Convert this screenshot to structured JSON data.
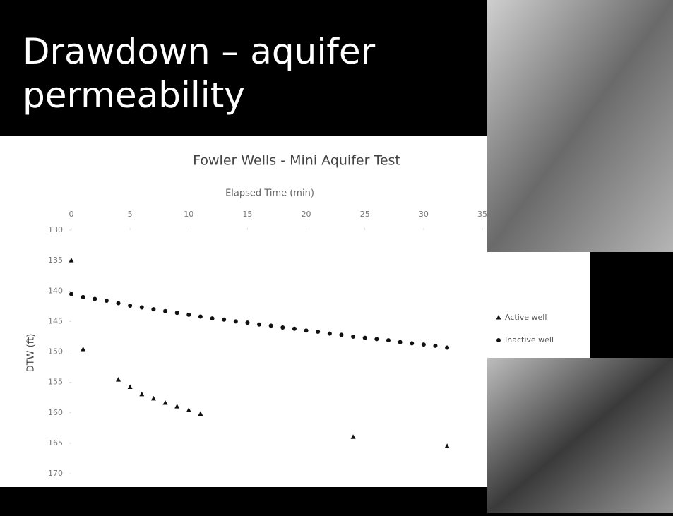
{
  "slide_title": "Drawdown – aquifer permeability",
  "chart_data": {
    "type": "scatter",
    "title": "Fowler Wells - Mini Aquifer Test",
    "x_label": "Elapsed Time (min)",
    "y_label": "DTW (ft)",
    "x_axis_position": "top",
    "y_reversed": true,
    "xlim": [
      0,
      35
    ],
    "xticks": [
      0,
      5,
      10,
      15,
      20,
      25,
      30,
      35
    ],
    "ylim": [
      130,
      170
    ],
    "yticks": [
      130,
      135,
      140,
      145,
      150,
      155,
      160,
      165,
      170
    ],
    "legend": "right",
    "series": [
      {
        "name": "Active well",
        "color": "#111111",
        "marker": "triangle",
        "x": [
          0,
          1,
          4,
          5,
          6,
          7,
          8,
          9,
          10,
          11,
          24,
          32
        ],
        "values": [
          135,
          149.6,
          154.6,
          155.8,
          157,
          157.7,
          158.4,
          159,
          159.6,
          160.2,
          164,
          165.5
        ]
      },
      {
        "name": "Inactive well",
        "color": "#111111",
        "marker": "circle",
        "x": [
          0,
          1,
          2,
          3,
          4,
          5,
          6,
          7,
          8,
          9,
          10,
          11,
          12,
          13,
          14,
          15,
          16,
          17,
          18,
          19,
          20,
          21,
          22,
          23,
          24,
          25,
          26,
          27,
          28,
          29,
          30,
          31,
          32
        ],
        "values": [
          140.5,
          141,
          141.3,
          141.6,
          142,
          142.4,
          142.7,
          143,
          143.3,
          143.6,
          143.9,
          144.2,
          144.5,
          144.7,
          145,
          145.2,
          145.5,
          145.7,
          146,
          146.2,
          146.5,
          146.7,
          147,
          147.2,
          147.5,
          147.7,
          147.9,
          148.1,
          148.4,
          148.6,
          148.8,
          149,
          149.3
        ]
      }
    ]
  }
}
